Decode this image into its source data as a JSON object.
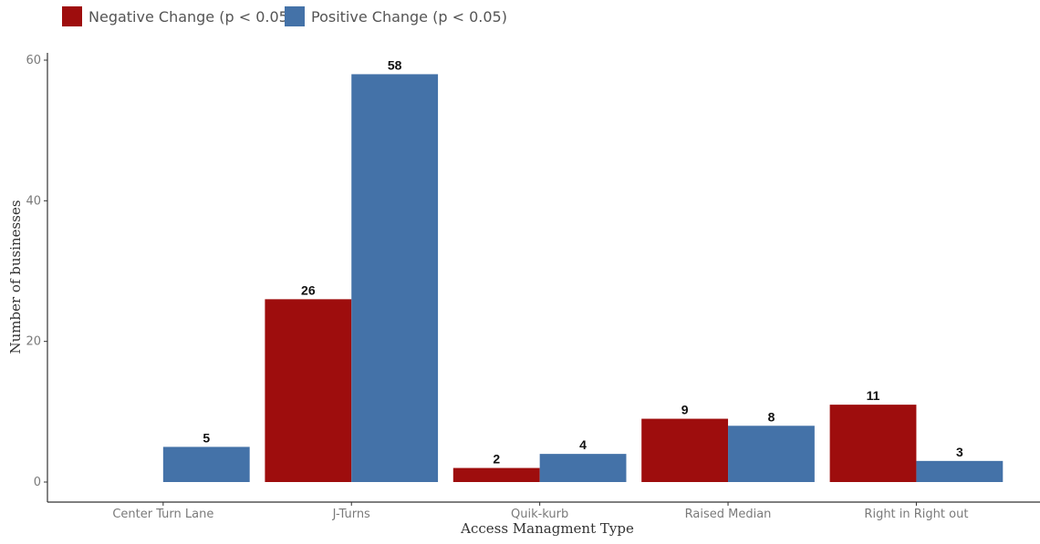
{
  "chart_data": {
    "type": "bar",
    "categories": [
      "Center Turn Lane",
      "J-Turns",
      "Quik-kurb",
      "Raised Median",
      "Right in Right out"
    ],
    "series": [
      {
        "name": "Negative Change (p < 0.05)",
        "color": "#9e0d0d",
        "values": [
          null,
          26,
          2,
          9,
          11
        ]
      },
      {
        "name": "Positive Change (p < 0.05)",
        "color": "#4472a8",
        "values": [
          5,
          58,
          4,
          8,
          3
        ]
      }
    ],
    "xlabel": "Access Managment Type",
    "ylabel": "Number of businesses",
    "ylim": [
      0,
      60
    ],
    "yticks": [
      0,
      20,
      40,
      60
    ],
    "grid": false,
    "legend_position": "top-left",
    "data_labels": true
  }
}
